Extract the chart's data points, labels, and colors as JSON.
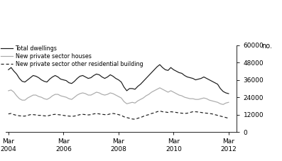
{
  "ylabel": "no.",
  "ylim": [
    0,
    60000
  ],
  "yticks": [
    0,
    12000,
    24000,
    36000,
    48000,
    60000
  ],
  "legend": [
    {
      "label": "Total dwellings",
      "color": "#1a1a1a",
      "linestyle": "solid"
    },
    {
      "label": "New private sector houses",
      "color": "#aaaaaa",
      "linestyle": "solid"
    },
    {
      "label": "New private sector other residential building",
      "color": "#1a1a1a",
      "linestyle": "dashed"
    }
  ],
  "total_dwellings": [
    43000,
    44500,
    42000,
    40000,
    37000,
    35000,
    34500,
    36000,
    37500,
    39000,
    38500,
    37500,
    36000,
    35000,
    34500,
    36500,
    38000,
    39000,
    38000,
    36500,
    36000,
    35500,
    34000,
    33500,
    35000,
    37000,
    38500,
    39000,
    38000,
    37000,
    37500,
    39000,
    40000,
    39500,
    38000,
    37000,
    38000,
    39500,
    38500,
    37000,
    36000,
    34500,
    31000,
    28500,
    30000,
    30000,
    29500,
    31500,
    33000,
    35000,
    37000,
    39000,
    41000,
    43000,
    45000,
    46500,
    44500,
    43000,
    42500,
    44500,
    43000,
    42000,
    41000,
    40500,
    39000,
    38000,
    37500,
    37000,
    36000,
    36500,
    37000,
    38000,
    37000,
    36000,
    35000,
    34000,
    33000,
    30000,
    28000,
    27000,
    26500
  ],
  "private_houses": [
    28500,
    29000,
    27500,
    25000,
    23000,
    22000,
    22000,
    23500,
    24500,
    25500,
    25500,
    24500,
    24000,
    23000,
    22500,
    23500,
    25000,
    26000,
    26000,
    25000,
    24500,
    24000,
    23000,
    22500,
    24000,
    25500,
    26500,
    27000,
    26500,
    25500,
    25500,
    26500,
    27500,
    27000,
    26000,
    25500,
    26000,
    27000,
    26500,
    25500,
    24500,
    23500,
    21000,
    19500,
    20000,
    20500,
    20000,
    21500,
    22500,
    23500,
    25000,
    26000,
    27500,
    28500,
    29500,
    30500,
    29500,
    28500,
    27500,
    28500,
    27500,
    26500,
    25500,
    25000,
    24000,
    23500,
    23000,
    23000,
    22500,
    22500,
    23000,
    23500,
    23000,
    22000,
    21500,
    21000,
    20500,
    19500,
    19000,
    20000,
    20500
  ],
  "other_residential": [
    12500,
    12800,
    12000,
    11500,
    11200,
    11000,
    11000,
    11500,
    12000,
    12000,
    11800,
    11500,
    11500,
    11200,
    11000,
    11500,
    12000,
    12200,
    12000,
    11800,
    11500,
    11200,
    11000,
    10800,
    11000,
    11500,
    12000,
    12200,
    12000,
    11800,
    12000,
    12500,
    12800,
    12500,
    12200,
    12000,
    12000,
    12500,
    12800,
    12500,
    12000,
    11500,
    10500,
    10000,
    9500,
    9000,
    8800,
    9500,
    10000,
    10800,
    11500,
    12000,
    12800,
    13200,
    14000,
    14500,
    14000,
    13800,
    13500,
    14000,
    13800,
    13500,
    13200,
    13000,
    12800,
    13000,
    13500,
    14000,
    14000,
    13800,
    13500,
    13200,
    13000,
    12800,
    12500,
    12000,
    11500,
    11000,
    10500,
    10000,
    9500
  ],
  "n_points": 81,
  "x_start": 0,
  "x_end": 8.0,
  "xtick_positions": [
    0,
    2,
    4,
    6,
    8
  ],
  "xtick_labels": [
    "Mar\n2004",
    "Mar\n2006",
    "Mar\n2008",
    "Mar\n2010",
    "Mar\n2012"
  ]
}
